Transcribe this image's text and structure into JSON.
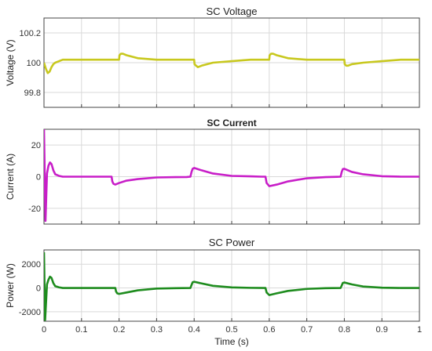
{
  "chart_data": [
    {
      "type": "line",
      "title": "SC Voltage",
      "title_bold": false,
      "xlabel": "",
      "ylabel": "Voltage (V)",
      "xlim": [
        0,
        1
      ],
      "ylim": [
        99.7,
        100.3
      ],
      "yticks": [
        "99.8",
        "100",
        "100.2"
      ],
      "grid": true,
      "series": [
        {
          "color": "#c8c81e",
          "x": [
            0,
            0.005,
            0.01,
            0.015,
            0.02,
            0.025,
            0.03,
            0.04,
            0.05,
            0.07,
            0.1,
            0.15,
            0.2,
            0.201,
            0.205,
            0.21,
            0.22,
            0.25,
            0.3,
            0.35,
            0.4,
            0.401,
            0.405,
            0.41,
            0.42,
            0.45,
            0.5,
            0.55,
            0.6,
            0.601,
            0.605,
            0.61,
            0.62,
            0.65,
            0.7,
            0.75,
            0.8,
            0.801,
            0.805,
            0.81,
            0.82,
            0.85,
            0.9,
            0.95,
            1.0
          ],
          "y": [
            100.0,
            99.96,
            99.93,
            99.94,
            99.97,
            99.99,
            100.0,
            100.01,
            100.02,
            100.02,
            100.02,
            100.02,
            100.02,
            100.05,
            100.06,
            100.06,
            100.05,
            100.03,
            100.02,
            100.02,
            100.02,
            99.99,
            99.98,
            99.97,
            99.98,
            100.0,
            100.01,
            100.02,
            100.02,
            100.05,
            100.06,
            100.06,
            100.05,
            100.03,
            100.02,
            100.02,
            100.02,
            99.99,
            99.98,
            99.98,
            99.99,
            100.0,
            100.01,
            100.02,
            100.02
          ]
        }
      ]
    },
    {
      "type": "line",
      "title": "SC Current",
      "title_bold": true,
      "xlabel": "",
      "ylabel": "Current (A)",
      "xlim": [
        0,
        1
      ],
      "ylim": [
        -30,
        30
      ],
      "yticks": [
        "-20",
        "0",
        "20"
      ],
      "grid": true,
      "series": [
        {
          "color": "#c81ec8",
          "x": [
            0,
            0.004,
            0.008,
            0.012,
            0.016,
            0.02,
            0.025,
            0.03,
            0.04,
            0.05,
            0.07,
            0.1,
            0.15,
            0.18,
            0.182,
            0.185,
            0.19,
            0.2,
            0.22,
            0.25,
            0.3,
            0.35,
            0.38,
            0.39,
            0.393,
            0.396,
            0.4,
            0.42,
            0.45,
            0.5,
            0.55,
            0.58,
            0.59,
            0.593,
            0.6,
            0.62,
            0.65,
            0.7,
            0.75,
            0.78,
            0.79,
            0.793,
            0.796,
            0.8,
            0.82,
            0.85,
            0.9,
            0.95,
            1.0
          ],
          "y": [
            30,
            -28,
            2,
            7,
            9,
            8,
            4,
            1.5,
            0.5,
            0,
            0,
            0,
            0,
            0,
            -3,
            -4.5,
            -5,
            -4,
            -2.5,
            -1.5,
            -0.5,
            -0.3,
            -0.2,
            0,
            3,
            5,
            5.5,
            4,
            2,
            0.5,
            0.2,
            0,
            0,
            -4,
            -6,
            -5,
            -3,
            -1,
            -0.3,
            -0.1,
            0,
            3,
            4.8,
            5,
            3,
            1.5,
            0.3,
            0,
            0
          ]
        }
      ]
    },
    {
      "type": "line",
      "title": "SC Power",
      "title_bold": false,
      "xlabel": "Time (s)",
      "ylabel": "Power (W)",
      "xlim": [
        0,
        1
      ],
      "ylim": [
        -2800,
        3200
      ],
      "xticks": [
        "0",
        "0.1",
        "0.2",
        "0.3",
        "0.4",
        "0.5",
        "0.6",
        "0.7",
        "0.8",
        "0.9",
        "1"
      ],
      "yticks": [
        "-2000",
        "0",
        "2000"
      ],
      "grid": true,
      "series": [
        {
          "color": "#1e8c1e",
          "x": [
            0,
            0.003,
            0.008,
            0.012,
            0.016,
            0.02,
            0.025,
            0.03,
            0.04,
            0.05,
            0.07,
            0.1,
            0.15,
            0.19,
            0.192,
            0.195,
            0.2,
            0.22,
            0.25,
            0.3,
            0.35,
            0.39,
            0.393,
            0.396,
            0.4,
            0.42,
            0.45,
            0.5,
            0.55,
            0.59,
            0.593,
            0.6,
            0.62,
            0.65,
            0.7,
            0.75,
            0.79,
            0.793,
            0.796,
            0.8,
            0.82,
            0.85,
            0.9,
            0.95,
            1.0
          ],
          "y": [
            3000,
            -2700,
            300,
            700,
            950,
            850,
            400,
            150,
            50,
            0,
            0,
            0,
            0,
            0,
            -300,
            -450,
            -500,
            -380,
            -200,
            -50,
            -20,
            0,
            250,
            480,
            520,
            380,
            180,
            50,
            10,
            0,
            -380,
            -600,
            -450,
            -250,
            -80,
            -20,
            0,
            200,
            420,
            460,
            300,
            120,
            20,
            0,
            0
          ]
        }
      ]
    }
  ]
}
